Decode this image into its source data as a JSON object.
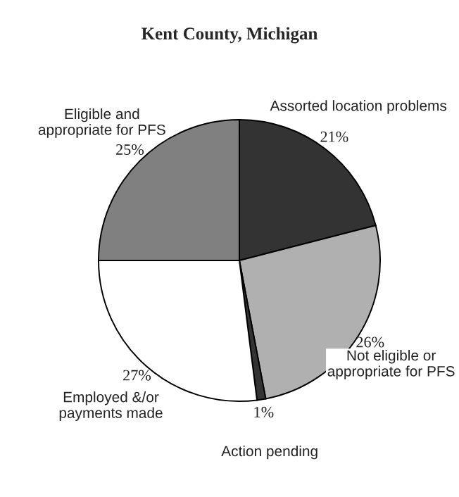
{
  "chart_data": {
    "type": "pie",
    "title": "Kent County, Michigan",
    "categories": [
      "Assorted location problems",
      "Not eligible or\nappropriate for PFS",
      "Action pending",
      "Employed &/or\npayments made",
      "Eligible and\nappropriate for PFS"
    ],
    "values": [
      21,
      26,
      1,
      27,
      25
    ],
    "value_labels": [
      "21%",
      "26%",
      "1%",
      "27%",
      "25%"
    ],
    "colors": [
      "#333333",
      "#b0b0b0",
      "#333333",
      "#ffffff",
      "#808080"
    ]
  }
}
